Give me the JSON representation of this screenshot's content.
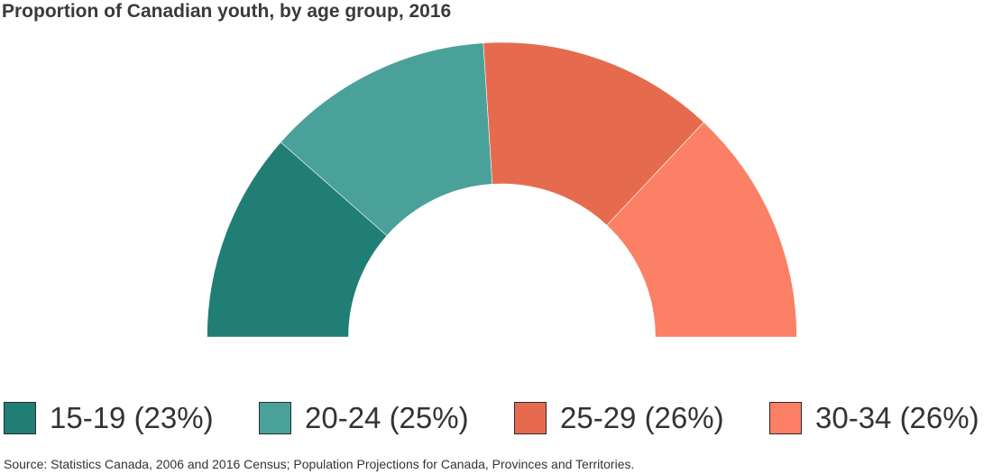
{
  "chart_data": {
    "type": "pie",
    "title": "Proportion of Canadian youth, by age group, 2016",
    "categories": [
      "15-19",
      "20-24",
      "25-29",
      "30-34"
    ],
    "values": [
      23,
      25,
      26,
      26
    ],
    "legend_labels": [
      "15-19 (23%)",
      "20-24 (25%)",
      "25-29 (26%)",
      "30-34 (26%)"
    ],
    "colors": [
      "#217e74",
      "#4aa199",
      "#e66b4e",
      "#fb8065"
    ],
    "legend": "bottom",
    "source": "Source: Statistics Canada, 2006 and 2016 Census; Population Projections for Canada, Provinces and Territories."
  }
}
